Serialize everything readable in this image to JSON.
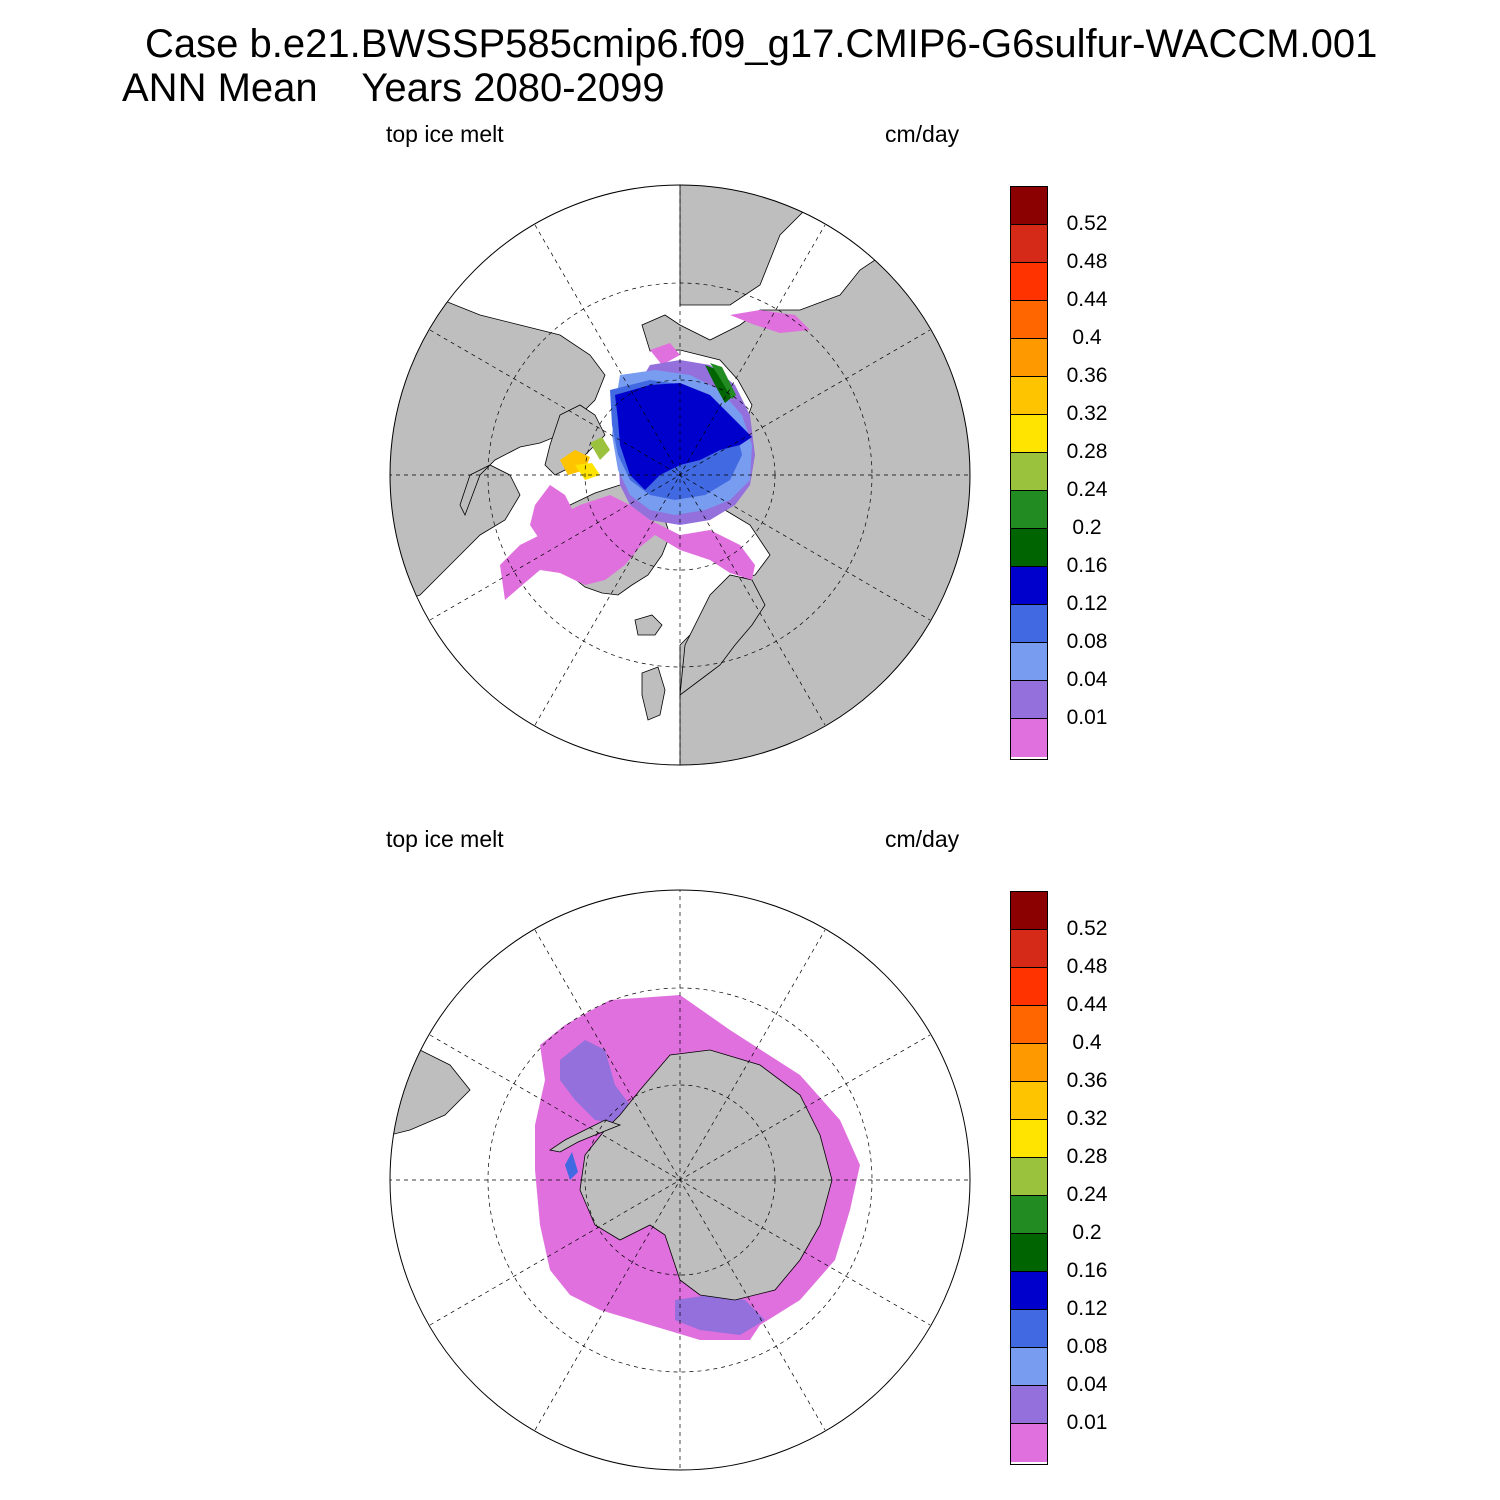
{
  "title": {
    "line1": "Case b.e21.BWSSP585cmip6.f09_g17.CMIP6-G6sulfur-WACCM.001",
    "line2": "ANN Mean    Years 2080-2099"
  },
  "panels": [
    {
      "id": "north",
      "hemisphere": "Arctic (north polar stereographic)",
      "left_label": "top ice melt",
      "right_label": "cm/day"
    },
    {
      "id": "south",
      "hemisphere": "Antarctic (south polar stereographic)",
      "left_label": "top ice melt",
      "right_label": "cm/day"
    }
  ],
  "colorbar": {
    "units": "cm/day",
    "labels": [
      "0.52",
      "0.48",
      "0.44",
      "0.4",
      "0.36",
      "0.32",
      "0.28",
      "0.24",
      "0.2",
      "0.16",
      "0.12",
      "0.08",
      "0.04",
      "0.01"
    ],
    "colors_top_to_bottom": [
      "#8B0000",
      "#D62A18",
      "#FF3300",
      "#FF6600",
      "#FF9900",
      "#FFC400",
      "#FFE400",
      "#9BC23C",
      "#228B22",
      "#006400",
      "#0000CD",
      "#4169E1",
      "#789CF0",
      "#9370DB",
      "#E070DE"
    ]
  },
  "map_style": {
    "land_color": "#BEBEBE",
    "ocean_color": "#FFFFFF",
    "grid": "dashed lat/lon lines"
  }
}
